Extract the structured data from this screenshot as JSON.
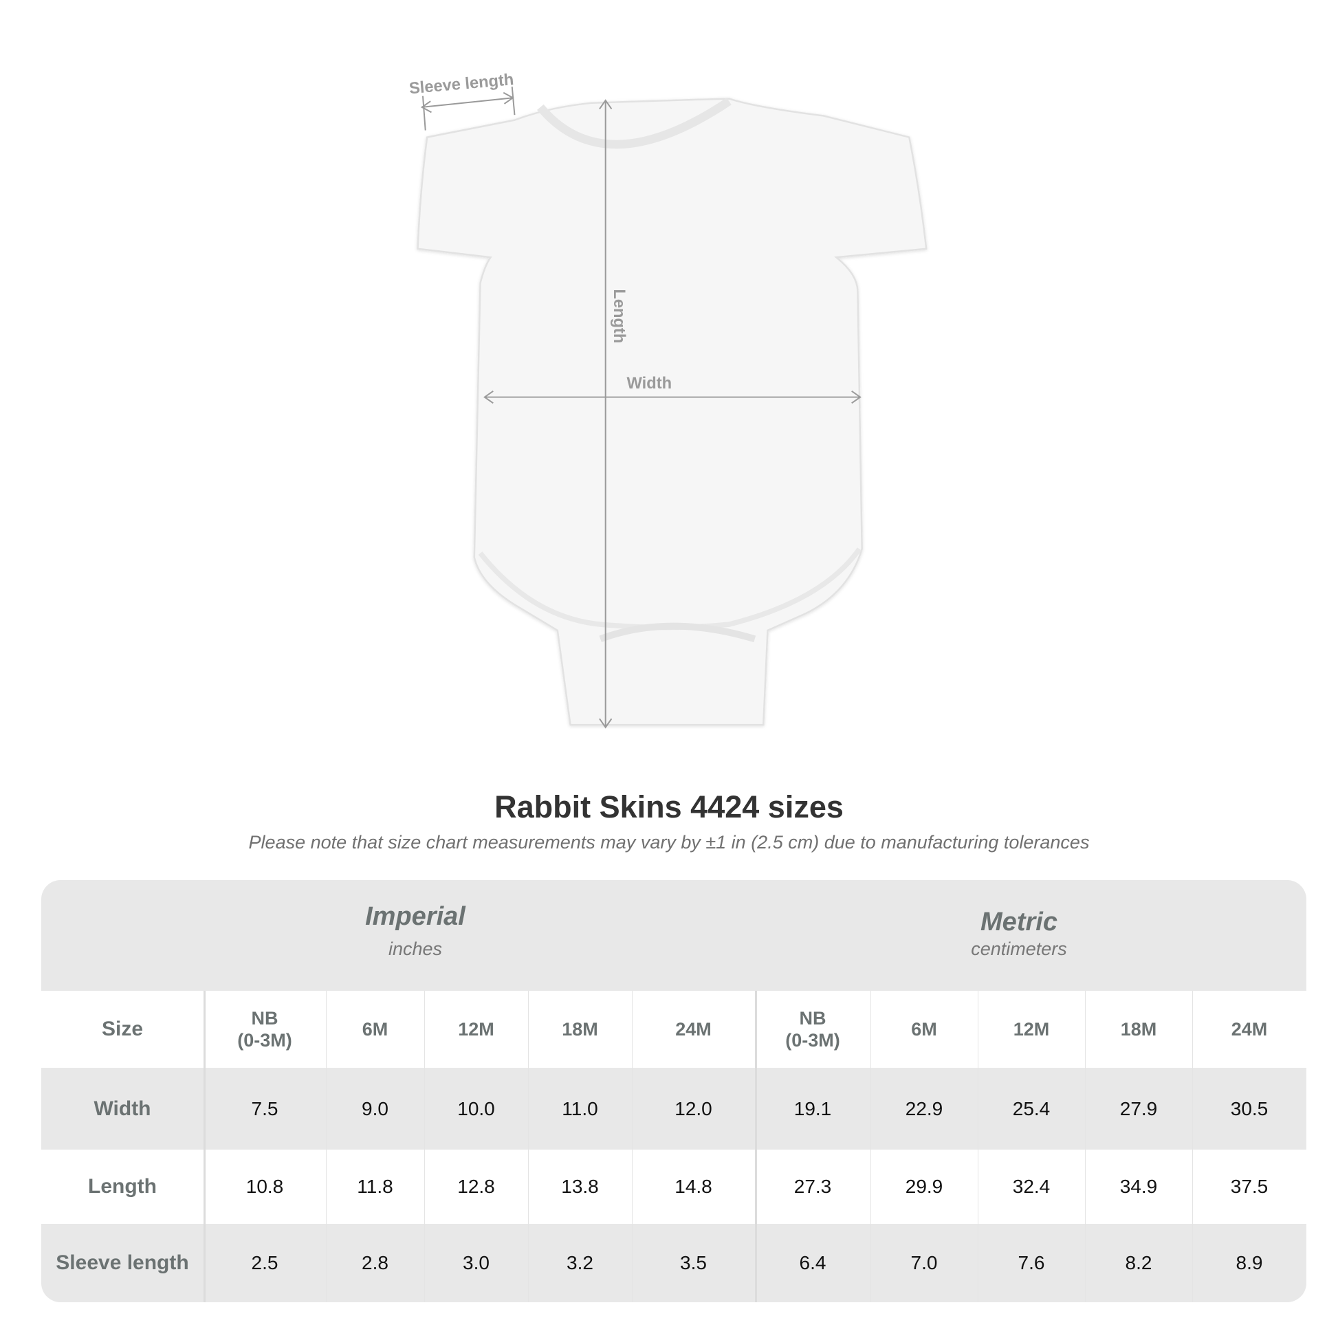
{
  "diagram": {
    "labels": {
      "sleeve_length": "Sleeve length",
      "length": "Length",
      "width": "Width"
    }
  },
  "title": "Rabbit Skins 4424 sizes",
  "subtitle": "Please note that size chart measurements may vary by ±1 in (2.5 cm) due to manufacturing tolerances",
  "table": {
    "imperial": {
      "name": "Imperial",
      "unit": "inches"
    },
    "metric": {
      "name": "Metric",
      "unit": "centimeters"
    },
    "size_label": "Size",
    "sizes": [
      "NB\n(0-3M)",
      "6M",
      "12M",
      "18M",
      "24M"
    ],
    "rows": [
      {
        "label": "Width",
        "imperial": [
          "7.5",
          "9.0",
          "10.0",
          "11.0",
          "12.0"
        ],
        "metric": [
          "19.1",
          "22.9",
          "25.4",
          "27.9",
          "30.5"
        ]
      },
      {
        "label": "Length",
        "imperial": [
          "10.8",
          "11.8",
          "12.8",
          "13.8",
          "14.8"
        ],
        "metric": [
          "27.3",
          "29.9",
          "32.4",
          "34.9",
          "37.5"
        ]
      },
      {
        "label": "Sleeve length",
        "imperial": [
          "2.5",
          "2.8",
          "3.0",
          "3.2",
          "3.5"
        ],
        "metric": [
          "6.4",
          "7.0",
          "7.6",
          "8.2",
          "8.9"
        ]
      }
    ]
  },
  "colors": {
    "header_bg": "#e8e8e8",
    "label_text": "#6b7272",
    "measure_line": "#9a9a9a"
  }
}
